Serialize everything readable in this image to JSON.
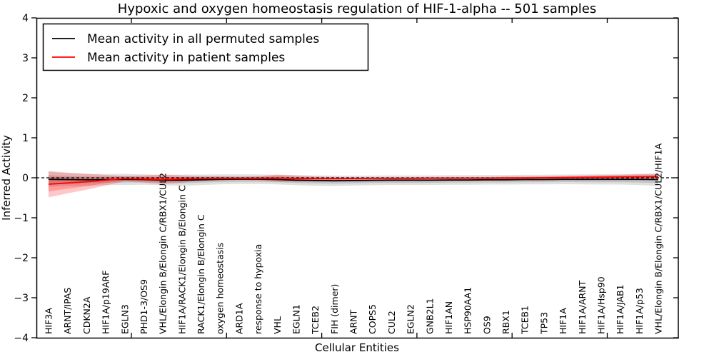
{
  "chart_data": {
    "type": "line",
    "title": "Hypoxic and oxygen homeostasis regulation of HIF-1-alpha -- 501 samples",
    "xlabel": "Cellular Entities",
    "ylabel": "Inferred Activity",
    "ylim": [
      -4,
      4
    ],
    "yticks": [
      4,
      3,
      2,
      1,
      0,
      -1,
      -2,
      -3,
      -4
    ],
    "grid": false,
    "legend_position": "upper left",
    "zero_line": {
      "y": 0,
      "style": "dashed",
      "color": "#000000"
    },
    "categories": [
      "HIF3A",
      "ARNT/IPAS",
      "CDKN2A",
      "HIF1A/p19ARF",
      "EGLN3",
      "PHD1-3/OS9",
      "VHL/Elongin B/Elongin C/RBX1/CUL2",
      "HIF1A/RACK1/Elongin B/Elongin C",
      "RACK1/Elongin B/Elongin C",
      "oxygen homeostasis",
      "ARD1A",
      "response to hypoxia",
      "VHL",
      "EGLN1",
      "TCEB2",
      "FIH (dimer)",
      "ARNT",
      "COPS5",
      "CUL2",
      "EGLN2",
      "GNB2L1",
      "HIF1AN",
      "HSP90AA1",
      "OS9",
      "RBX1",
      "TCEB1",
      "TP53",
      "HIF1A",
      "HIF1A/ARNT",
      "HIF1A/Hsp90",
      "HIF1A/JAB1",
      "HIF1A/p53",
      "VHL/Elongin B/Elongin C/RBX1/CUL2/HIF1A"
    ],
    "series": [
      {
        "name": "Mean activity in all permuted samples",
        "color": "#000000",
        "band_color": "#000000",
        "band_opacity": 0.12,
        "values": [
          -0.04,
          -0.045,
          -0.05,
          -0.045,
          -0.04,
          -0.045,
          -0.055,
          -0.06,
          -0.05,
          -0.04,
          -0.035,
          -0.035,
          -0.045,
          -0.06,
          -0.07,
          -0.075,
          -0.07,
          -0.065,
          -0.06,
          -0.06,
          -0.06,
          -0.055,
          -0.055,
          -0.05,
          -0.05,
          -0.045,
          -0.045,
          -0.04,
          -0.04,
          -0.04,
          -0.04,
          -0.04,
          -0.045
        ],
        "band": [
          0.19,
          0.16,
          0.15,
          0.14,
          0.14,
          0.13,
          0.13,
          0.14,
          0.13,
          0.125,
          0.12,
          0.12,
          0.12,
          0.125,
          0.13,
          0.13,
          0.125,
          0.12,
          0.12,
          0.12,
          0.12,
          0.12,
          0.12,
          0.12,
          0.12,
          0.12,
          0.12,
          0.12,
          0.125,
          0.13,
          0.13,
          0.14,
          0.16
        ]
      },
      {
        "name": "Mean activity in patient samples",
        "color": "#ff0000",
        "band_color": "#ff0000",
        "band_opacity": 0.22,
        "values": [
          -0.16,
          -0.13,
          -0.1,
          -0.06,
          -0.02,
          -0.03,
          -0.04,
          -0.03,
          -0.02,
          -0.015,
          -0.015,
          -0.015,
          -0.01,
          -0.02,
          -0.02,
          -0.02,
          -0.02,
          -0.015,
          -0.015,
          -0.015,
          -0.01,
          -0.01,
          -0.01,
          -0.01,
          -0.005,
          -0.005,
          0.0,
          0.005,
          0.01,
          0.015,
          0.02,
          0.025,
          0.03
        ],
        "band": [
          0.33,
          0.26,
          0.2,
          0.13,
          0.07,
          0.09,
          0.12,
          0.09,
          0.06,
          0.05,
          0.04,
          0.05,
          0.09,
          0.08,
          0.05,
          0.04,
          0.035,
          0.03,
          0.03,
          0.03,
          0.03,
          0.03,
          0.03,
          0.03,
          0.035,
          0.035,
          0.035,
          0.04,
          0.045,
          0.05,
          0.055,
          0.065,
          0.06
        ]
      }
    ]
  }
}
